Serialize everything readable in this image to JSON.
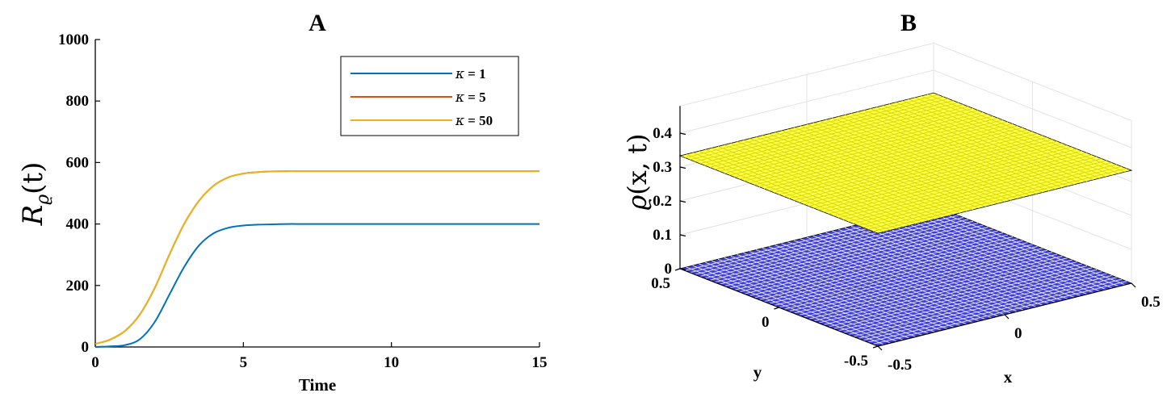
{
  "chart_data": [
    {
      "panel": "A",
      "type": "line",
      "title": "A",
      "xlabel": "Time",
      "ylabel_base": "R",
      "ylabel_sub": "ϱ",
      "ylabel_arg": "(t)",
      "xlim": [
        0,
        15
      ],
      "ylim": [
        0,
        1000
      ],
      "xticks": [
        0,
        5,
        10,
        15
      ],
      "yticks": [
        0,
        200,
        400,
        600,
        800,
        1000
      ],
      "grid": false,
      "legend_position": "top-right",
      "series": [
        {
          "name": "κ = 1",
          "legend_symbol": "κ",
          "legend_value": "= 1",
          "color": "#0072BD",
          "x": [
            0,
            0.5,
            1,
            1.5,
            2,
            2.5,
            3,
            3.5,
            4,
            4.5,
            5,
            5.5,
            6,
            6.5,
            7,
            8,
            9,
            10,
            11,
            12,
            13,
            14,
            15
          ],
          "y": [
            0,
            2,
            6,
            25,
            80,
            170,
            260,
            330,
            370,
            388,
            395,
            398,
            399,
            400,
            400,
            400,
            400,
            400,
            400,
            400,
            400,
            400,
            400
          ]
        },
        {
          "name": "κ = 5",
          "legend_symbol": "κ",
          "legend_value": "= 5",
          "color": "#D95319",
          "x": [
            0,
            0.5,
            1,
            1.5,
            2,
            2.5,
            3,
            3.5,
            4,
            4.5,
            5,
            5.5,
            6,
            6.5,
            7,
            8,
            9,
            10,
            11,
            12,
            13,
            14,
            15
          ],
          "y": [
            10,
            24,
            52,
            105,
            190,
            300,
            400,
            475,
            525,
            552,
            564,
            569,
            571,
            572,
            572,
            572,
            572,
            572,
            572,
            572,
            572,
            572,
            572
          ]
        },
        {
          "name": "κ = 50",
          "legend_symbol": "κ",
          "legend_value": "= 50",
          "color": "#EDB120",
          "x": [
            0,
            0.5,
            1,
            1.5,
            2,
            2.5,
            3,
            3.5,
            4,
            4.5,
            5,
            5.5,
            6,
            6.5,
            7,
            8,
            9,
            10,
            11,
            12,
            13,
            14,
            15
          ],
          "y": [
            10,
            24,
            52,
            105,
            190,
            300,
            400,
            475,
            525,
            552,
            564,
            569,
            571,
            572,
            572,
            572,
            572,
            572,
            572,
            572,
            572,
            572,
            572
          ]
        }
      ]
    },
    {
      "panel": "B",
      "type": "surface",
      "title": "B",
      "xlabel": "x",
      "ylabel": "y",
      "zlabel_func": "ϱ",
      "zlabel_args": "(x, t)",
      "xlim": [
        -0.5,
        0.5
      ],
      "ylim": [
        -0.5,
        0.5
      ],
      "zlim": [
        0,
        0.48
      ],
      "xticks": [
        -0.5,
        0,
        0.5
      ],
      "yticks": [
        -0.5,
        0,
        0.5
      ],
      "zticks": [
        0,
        0.1,
        0.2,
        0.3,
        0.4
      ],
      "grid": true,
      "surfaces": [
        {
          "z": 0.333,
          "color": "#FFFF4D",
          "mesh_color": "#D9D900"
        },
        {
          "z": 0,
          "color": "#3F3FD8",
          "mesh_color": "#E8E8FF"
        }
      ],
      "mesh_divisions": 40
    }
  ]
}
